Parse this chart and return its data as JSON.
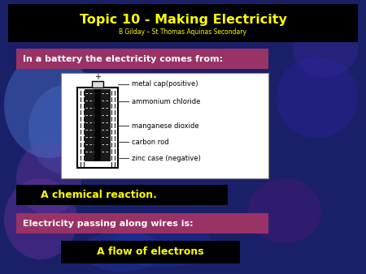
{
  "title": "Topic 10 - Making Electricity",
  "subtitle": "B Gilday – St Thomas Aquinas Secondary",
  "title_color": "#ffff00",
  "subtitle_color": "#ffff00",
  "title_bg": "#000000",
  "question1_text": "In a battery the electricity comes from:",
  "question1_bg": "#993366",
  "question1_text_color": "#ffffff",
  "answer1_text": "A chemical reaction.",
  "answer1_bg": "#000000",
  "answer1_text_color": "#ffff00",
  "question2_text": "Electricity passing along wires is:",
  "question2_bg": "#993366",
  "question2_text_color": "#ffffff",
  "answer2_text": "A flow of electrons",
  "answer2_bg": "#000000",
  "answer2_text_color": "#ffff00",
  "battery_labels": [
    "metal cap(positive)",
    "ammonium chloride",
    "manganese dioxide",
    "carbon rod",
    "zinc case (negative)"
  ]
}
